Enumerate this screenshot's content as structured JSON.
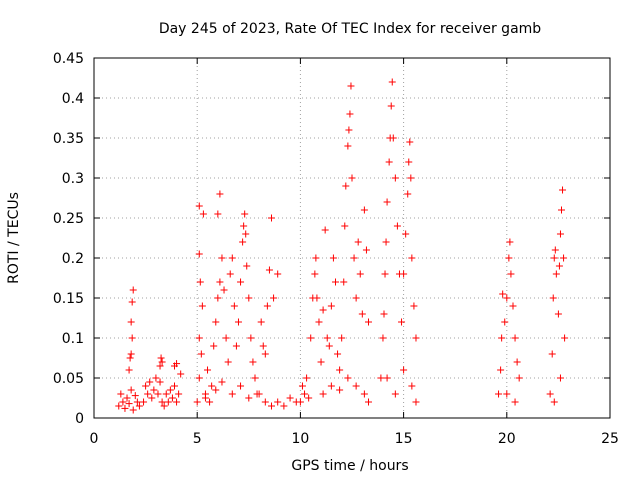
{
  "chart_data": {
    "type": "scatter",
    "title": "Day 245 of 2023, Rate Of TEC Index for receiver gamb",
    "xlabel": "GPS time / hours",
    "ylabel": "ROTI / TECUs",
    "xlim": [
      0,
      25
    ],
    "ylim": [
      0,
      0.45
    ],
    "xticks": [
      0,
      5,
      10,
      15,
      20,
      25
    ],
    "yticks": [
      0,
      0.05,
      0.1,
      0.15,
      0.2,
      0.25,
      0.3,
      0.35,
      0.4,
      0.45
    ],
    "grid": true,
    "marker": "plus",
    "color": "#ff0000",
    "series": [
      {
        "points": [
          [
            1.2,
            0.015
          ],
          [
            1.3,
            0.03
          ],
          [
            1.4,
            0.02
          ],
          [
            1.5,
            0.012
          ],
          [
            1.6,
            0.025
          ],
          [
            1.7,
            0.018
          ],
          [
            1.8,
            0.035
          ],
          [
            1.9,
            0.01
          ],
          [
            2.0,
            0.028
          ],
          [
            2.1,
            0.02
          ],
          [
            2.2,
            0.015
          ],
          [
            1.7,
            0.06
          ],
          [
            1.75,
            0.075
          ],
          [
            1.8,
            0.08
          ],
          [
            1.85,
            0.1
          ],
          [
            1.8,
            0.12
          ],
          [
            1.85,
            0.145
          ],
          [
            1.9,
            0.16
          ],
          [
            2.4,
            0.02
          ],
          [
            2.5,
            0.04
          ],
          [
            2.6,
            0.03
          ],
          [
            2.7,
            0.045
          ],
          [
            2.8,
            0.025
          ],
          [
            2.9,
            0.035
          ],
          [
            3.0,
            0.05
          ],
          [
            3.1,
            0.03
          ],
          [
            3.2,
            0.045
          ],
          [
            3.3,
            0.02
          ],
          [
            3.4,
            0.015
          ],
          [
            3.5,
            0.03
          ],
          [
            3.2,
            0.065
          ],
          [
            3.25,
            0.075
          ],
          [
            3.3,
            0.07
          ],
          [
            3.6,
            0.02
          ],
          [
            3.7,
            0.035
          ],
          [
            3.8,
            0.025
          ],
          [
            3.9,
            0.04
          ],
          [
            4.0,
            0.02
          ],
          [
            4.1,
            0.03
          ],
          [
            3.9,
            0.065
          ],
          [
            4.0,
            0.068
          ],
          [
            4.2,
            0.055
          ],
          [
            5.0,
            0.02
          ],
          [
            5.1,
            0.05
          ],
          [
            5.1,
            0.1
          ],
          [
            5.15,
            0.17
          ],
          [
            5.1,
            0.205
          ],
          [
            5.1,
            0.265
          ],
          [
            5.3,
            0.255
          ],
          [
            5.2,
            0.08
          ],
          [
            5.25,
            0.14
          ],
          [
            5.4,
            0.03
          ],
          [
            5.5,
            0.06
          ],
          [
            5.6,
            0.02
          ],
          [
            5.7,
            0.04
          ],
          [
            5.8,
            0.09
          ],
          [
            5.9,
            0.12
          ],
          [
            6.0,
            0.15
          ],
          [
            6.1,
            0.17
          ],
          [
            6.2,
            0.2
          ],
          [
            6.3,
            0.16
          ],
          [
            6.0,
            0.255
          ],
          [
            6.1,
            0.28
          ],
          [
            6.4,
            0.1
          ],
          [
            6.5,
            0.07
          ],
          [
            6.6,
            0.18
          ],
          [
            6.7,
            0.2
          ],
          [
            6.8,
            0.14
          ],
          [
            6.9,
            0.09
          ],
          [
            7.0,
            0.12
          ],
          [
            7.1,
            0.17
          ],
          [
            7.2,
            0.22
          ],
          [
            7.25,
            0.24
          ],
          [
            7.3,
            0.255
          ],
          [
            7.35,
            0.23
          ],
          [
            7.4,
            0.19
          ],
          [
            7.5,
            0.15
          ],
          [
            7.6,
            0.1
          ],
          [
            7.7,
            0.07
          ],
          [
            7.8,
            0.05
          ],
          [
            5.4,
            0.025
          ],
          [
            5.9,
            0.035
          ],
          [
            6.2,
            0.045
          ],
          [
            6.7,
            0.03
          ],
          [
            7.1,
            0.04
          ],
          [
            7.5,
            0.025
          ],
          [
            8.0,
            0.03
          ],
          [
            8.3,
            0.02
          ],
          [
            8.6,
            0.015
          ],
          [
            8.9,
            0.02
          ],
          [
            9.2,
            0.015
          ],
          [
            9.5,
            0.025
          ],
          [
            9.8,
            0.02
          ],
          [
            7.9,
            0.03
          ],
          [
            8.1,
            0.12
          ],
          [
            8.2,
            0.09
          ],
          [
            8.3,
            0.08
          ],
          [
            8.4,
            0.14
          ],
          [
            8.5,
            0.185
          ],
          [
            8.6,
            0.25
          ],
          [
            8.7,
            0.15
          ],
          [
            8.9,
            0.18
          ],
          [
            10.0,
            0.02
          ],
          [
            10.1,
            0.04
          ],
          [
            10.2,
            0.03
          ],
          [
            10.3,
            0.05
          ],
          [
            10.4,
            0.025
          ],
          [
            10.5,
            0.1
          ],
          [
            10.6,
            0.15
          ],
          [
            10.7,
            0.18
          ],
          [
            10.75,
            0.2
          ],
          [
            10.8,
            0.15
          ],
          [
            10.9,
            0.12
          ],
          [
            11.0,
            0.07
          ],
          [
            11.1,
            0.135
          ],
          [
            11.2,
            0.235
          ],
          [
            11.3,
            0.1
          ],
          [
            11.4,
            0.09
          ],
          [
            11.5,
            0.14
          ],
          [
            11.6,
            0.2
          ],
          [
            11.7,
            0.17
          ],
          [
            11.8,
            0.08
          ],
          [
            11.9,
            0.06
          ],
          [
            12.0,
            0.1
          ],
          [
            12.1,
            0.17
          ],
          [
            12.15,
            0.24
          ],
          [
            12.2,
            0.29
          ],
          [
            12.3,
            0.34
          ],
          [
            12.35,
            0.36
          ],
          [
            12.4,
            0.38
          ],
          [
            12.45,
            0.415
          ],
          [
            12.5,
            0.3
          ],
          [
            12.6,
            0.2
          ],
          [
            12.7,
            0.15
          ],
          [
            12.8,
            0.22
          ],
          [
            12.9,
            0.18
          ],
          [
            13.0,
            0.13
          ],
          [
            13.1,
            0.26
          ],
          [
            13.2,
            0.21
          ],
          [
            13.3,
            0.12
          ],
          [
            11.1,
            0.03
          ],
          [
            11.5,
            0.04
          ],
          [
            11.9,
            0.035
          ],
          [
            12.3,
            0.05
          ],
          [
            12.7,
            0.04
          ],
          [
            13.1,
            0.03
          ],
          [
            13.3,
            0.02
          ],
          [
            13.9,
            0.05
          ],
          [
            14.0,
            0.1
          ],
          [
            14.05,
            0.13
          ],
          [
            14.1,
            0.18
          ],
          [
            14.15,
            0.22
          ],
          [
            14.2,
            0.27
          ],
          [
            14.3,
            0.32
          ],
          [
            14.35,
            0.35
          ],
          [
            14.4,
            0.39
          ],
          [
            14.45,
            0.42
          ],
          [
            14.5,
            0.35
          ],
          [
            14.6,
            0.3
          ],
          [
            14.7,
            0.24
          ],
          [
            14.8,
            0.18
          ],
          [
            14.9,
            0.12
          ],
          [
            15.0,
            0.18
          ],
          [
            15.1,
            0.23
          ],
          [
            15.2,
            0.28
          ],
          [
            15.25,
            0.32
          ],
          [
            15.3,
            0.345
          ],
          [
            15.35,
            0.3
          ],
          [
            15.4,
            0.2
          ],
          [
            15.5,
            0.14
          ],
          [
            15.6,
            0.1
          ],
          [
            14.2,
            0.05
          ],
          [
            14.6,
            0.03
          ],
          [
            15.0,
            0.06
          ],
          [
            15.4,
            0.04
          ],
          [
            15.6,
            0.02
          ],
          [
            19.6,
            0.03
          ],
          [
            19.7,
            0.06
          ],
          [
            19.75,
            0.1
          ],
          [
            19.8,
            0.155
          ],
          [
            19.9,
            0.12
          ],
          [
            20.0,
            0.15
          ],
          [
            20.1,
            0.2
          ],
          [
            20.15,
            0.22
          ],
          [
            20.2,
            0.18
          ],
          [
            20.3,
            0.14
          ],
          [
            20.4,
            0.1
          ],
          [
            20.5,
            0.07
          ],
          [
            20.6,
            0.05
          ],
          [
            20.0,
            0.03
          ],
          [
            20.4,
            0.02
          ],
          [
            22.1,
            0.03
          ],
          [
            22.2,
            0.08
          ],
          [
            22.25,
            0.15
          ],
          [
            22.3,
            0.2
          ],
          [
            22.35,
            0.21
          ],
          [
            22.4,
            0.18
          ],
          [
            22.5,
            0.13
          ],
          [
            22.55,
            0.19
          ],
          [
            22.6,
            0.23
          ],
          [
            22.65,
            0.26
          ],
          [
            22.7,
            0.285
          ],
          [
            22.75,
            0.2
          ],
          [
            22.8,
            0.1
          ],
          [
            22.6,
            0.05
          ],
          [
            22.3,
            0.02
          ]
        ]
      }
    ]
  }
}
